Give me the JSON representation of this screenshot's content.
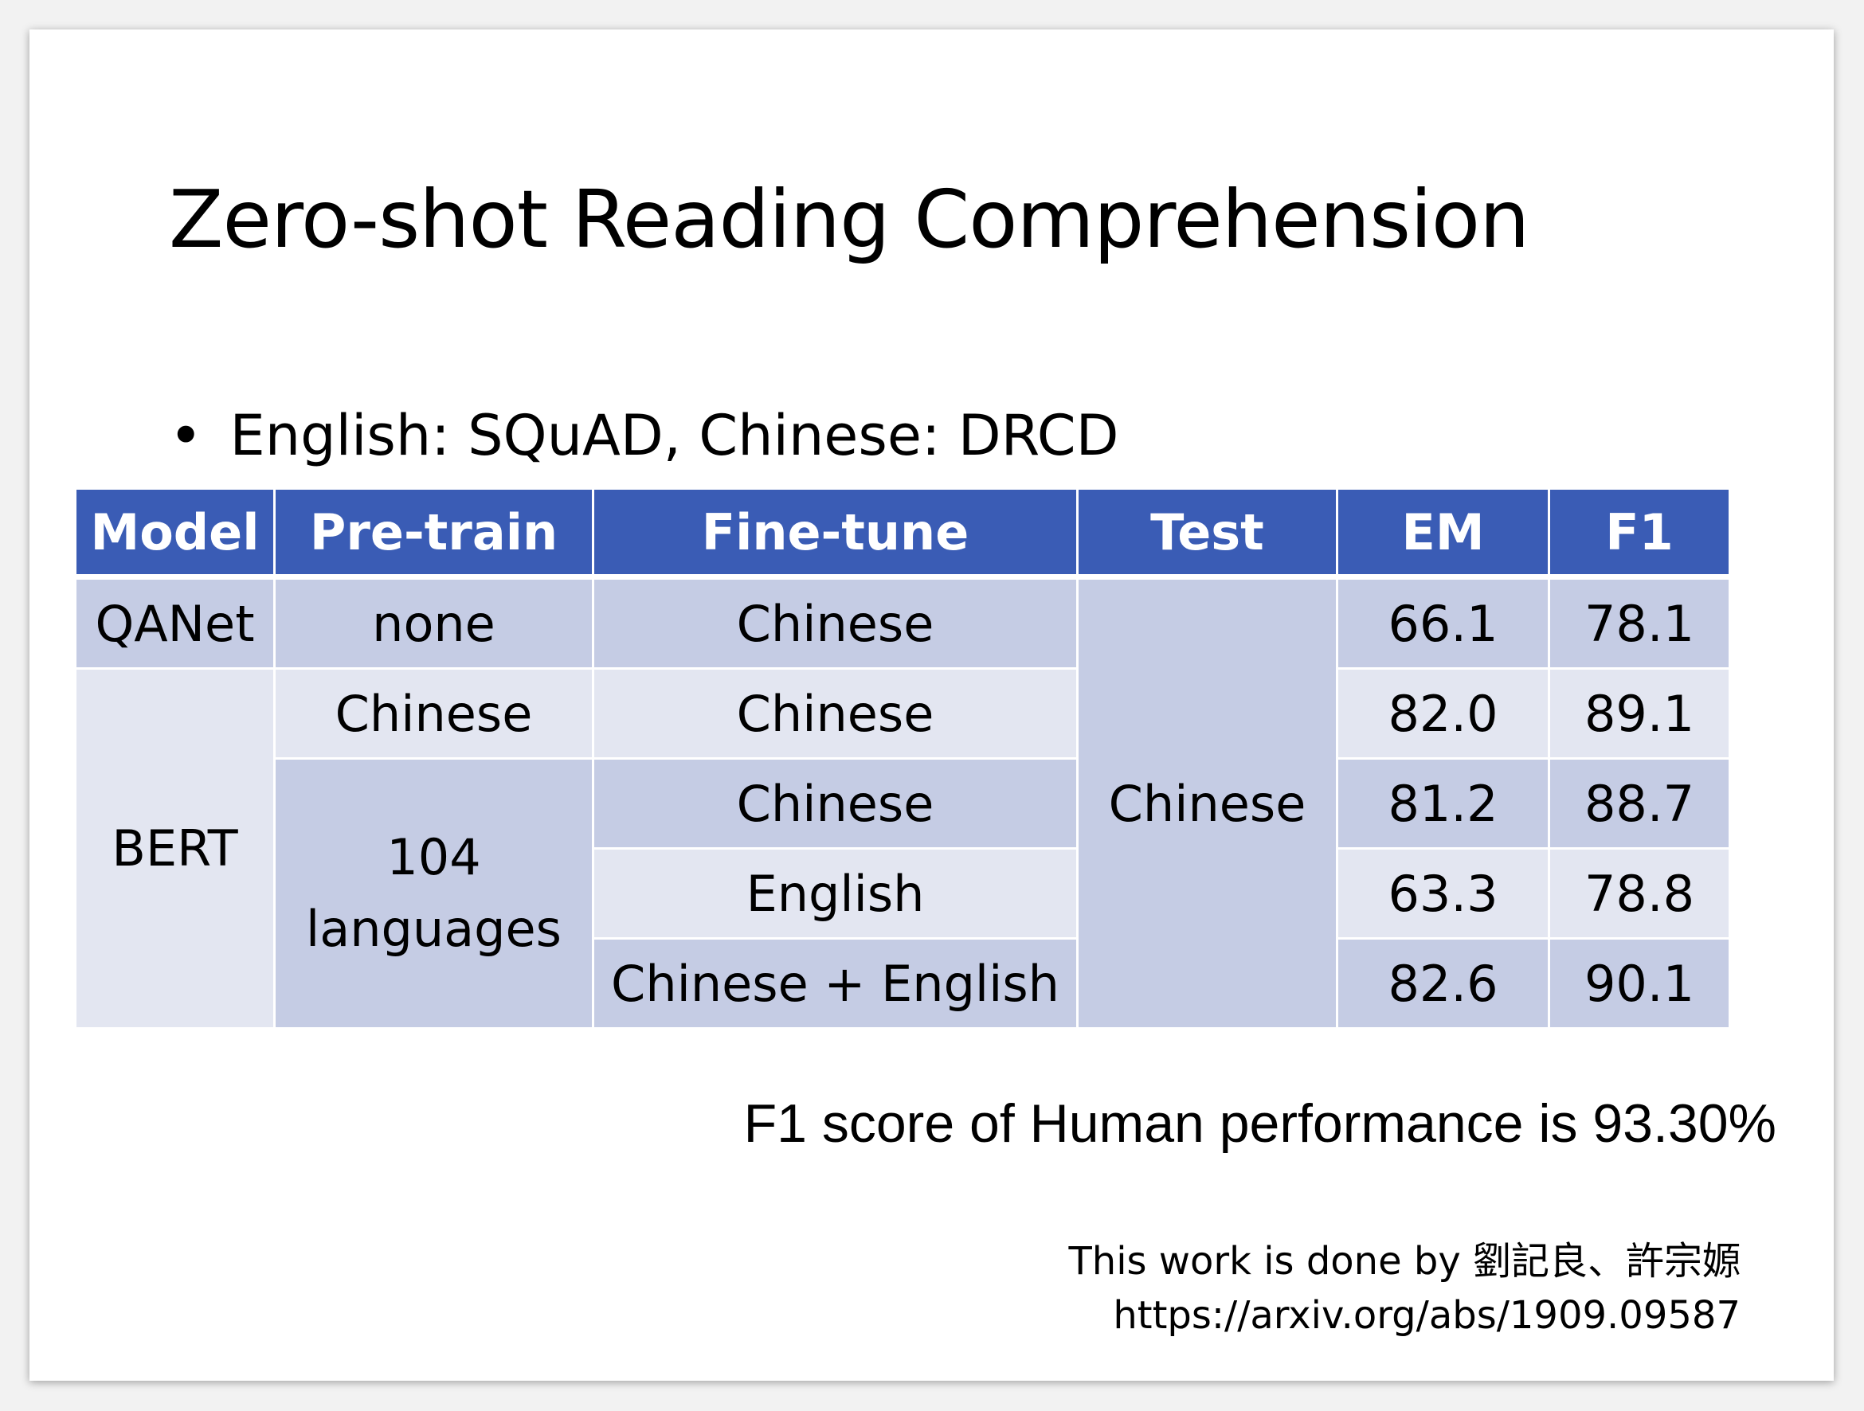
{
  "slide": {
    "title": "Zero-shot Reading Comprehension",
    "bullet": "English: SQuAD, Chinese: DRCD",
    "bullet_glyph": "•"
  },
  "table": {
    "headers": [
      "Model",
      "Pre-train",
      "Fine-tune",
      "Test",
      "EM",
      "F1"
    ],
    "rows": [
      {
        "model": "QANet",
        "pretrain": "none",
        "finetune": "Chinese",
        "test": "Chinese",
        "em": "66.1",
        "f1": "78.1"
      },
      {
        "model": "BERT",
        "pretrain": "Chinese",
        "finetune": "Chinese",
        "test": "Chinese",
        "em": "82.0",
        "f1": "89.1"
      },
      {
        "model": "BERT",
        "pretrain": "104 languages",
        "finetune": "Chinese",
        "test": "Chinese",
        "em": "81.2",
        "f1": "88.7"
      },
      {
        "model": "BERT",
        "pretrain": "104 languages",
        "finetune": "English",
        "test": "Chinese",
        "em": "63.3",
        "f1": "78.8"
      },
      {
        "model": "BERT",
        "pretrain": "104 languages",
        "finetune": "Chinese + English",
        "test": "Chinese",
        "em": "82.6",
        "f1": "90.1"
      }
    ],
    "pretrain_104_line1": "104",
    "pretrain_104_line2": "languages"
  },
  "human_note": "F1 score of Human performance is 93.30%",
  "credit": {
    "line1": "This work is done by 劉記良、許宗嫄",
    "line2": "https://arxiv.org/abs/1909.09587"
  },
  "colors": {
    "header_bg": "#3a5cb5",
    "row_dark": "#c5cce4",
    "row_light": "#e3e6f1"
  }
}
